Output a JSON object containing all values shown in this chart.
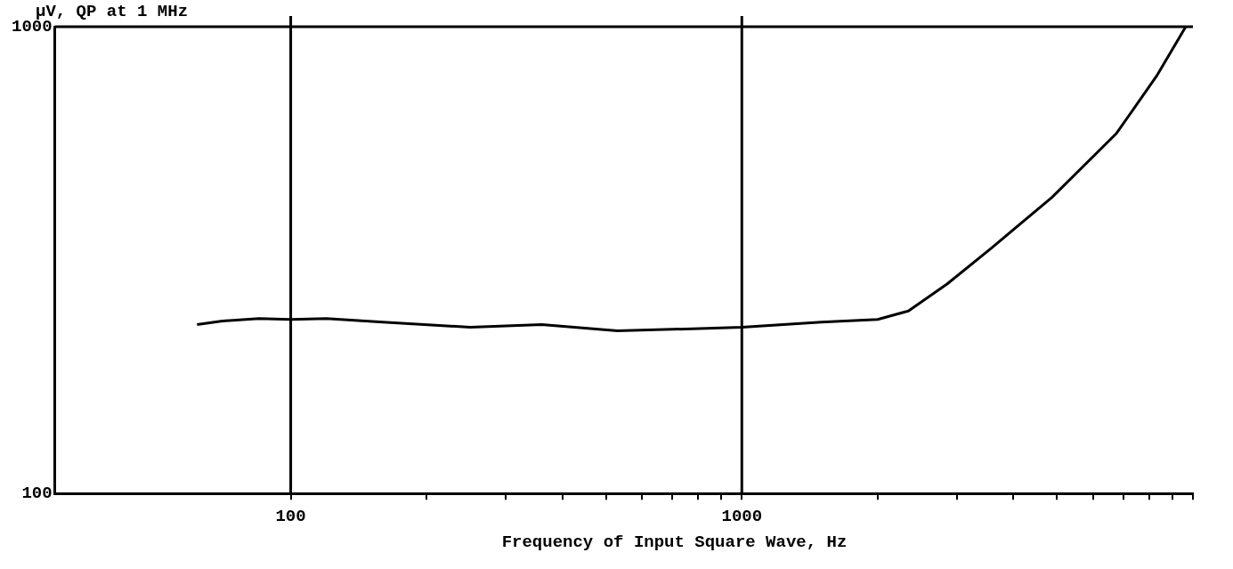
{
  "chart_data": {
    "type": "line",
    "xlabel": "Frequency of Input Square Wave, Hz",
    "ylabel": "µV, QP at 1 MHz",
    "log": "xy",
    "grid": false,
    "marker": "none",
    "line_style": "solid",
    "xlim": [
      30,
      10000
    ],
    "ylim": [
      100,
      1000
    ],
    "yticks": [
      100,
      1000
    ],
    "xticks": [
      {
        "value": 100,
        "label": "100"
      },
      {
        "value": 200,
        "label": null
      },
      {
        "value": 300,
        "label": null
      },
      {
        "value": 400,
        "label": null
      },
      {
        "value": 500,
        "label": null
      },
      {
        "value": 600,
        "label": null
      },
      {
        "value": 700,
        "label": null
      },
      {
        "value": 800,
        "label": null
      },
      {
        "value": 900,
        "label": null
      },
      {
        "value": 1000,
        "label": "1000"
      },
      {
        "value": 2000,
        "label": null
      },
      {
        "value": 3000,
        "label": null
      },
      {
        "value": 4000,
        "label": null
      },
      {
        "value": 5000,
        "label": null
      },
      {
        "value": 6000,
        "label": null
      },
      {
        "value": 7000,
        "label": null
      },
      {
        "value": 8000,
        "label": null
      },
      {
        "value": 9000,
        "label": null
      },
      {
        "value": 10000,
        "label": null
      }
    ],
    "ref_lines": [
      {
        "axis": "x",
        "value": 100,
        "color": "#000000"
      },
      {
        "axis": "x",
        "value": 1000,
        "color": "#000000"
      }
    ],
    "x": [
      62,
      70,
      85,
      100,
      120,
      160,
      250,
      360,
      530,
      1000,
      1500,
      2000,
      2340,
      2850,
      3580,
      4870,
      6770,
      8300,
      9640
    ],
    "series": [
      {
        "color": "#000000",
        "values": [
          230,
          234,
          237,
          236,
          237,
          233,
          227,
          230,
          223,
          227,
          233,
          236,
          246,
          281,
          336,
          431,
          591,
          783,
          1000
        ]
      }
    ]
  }
}
